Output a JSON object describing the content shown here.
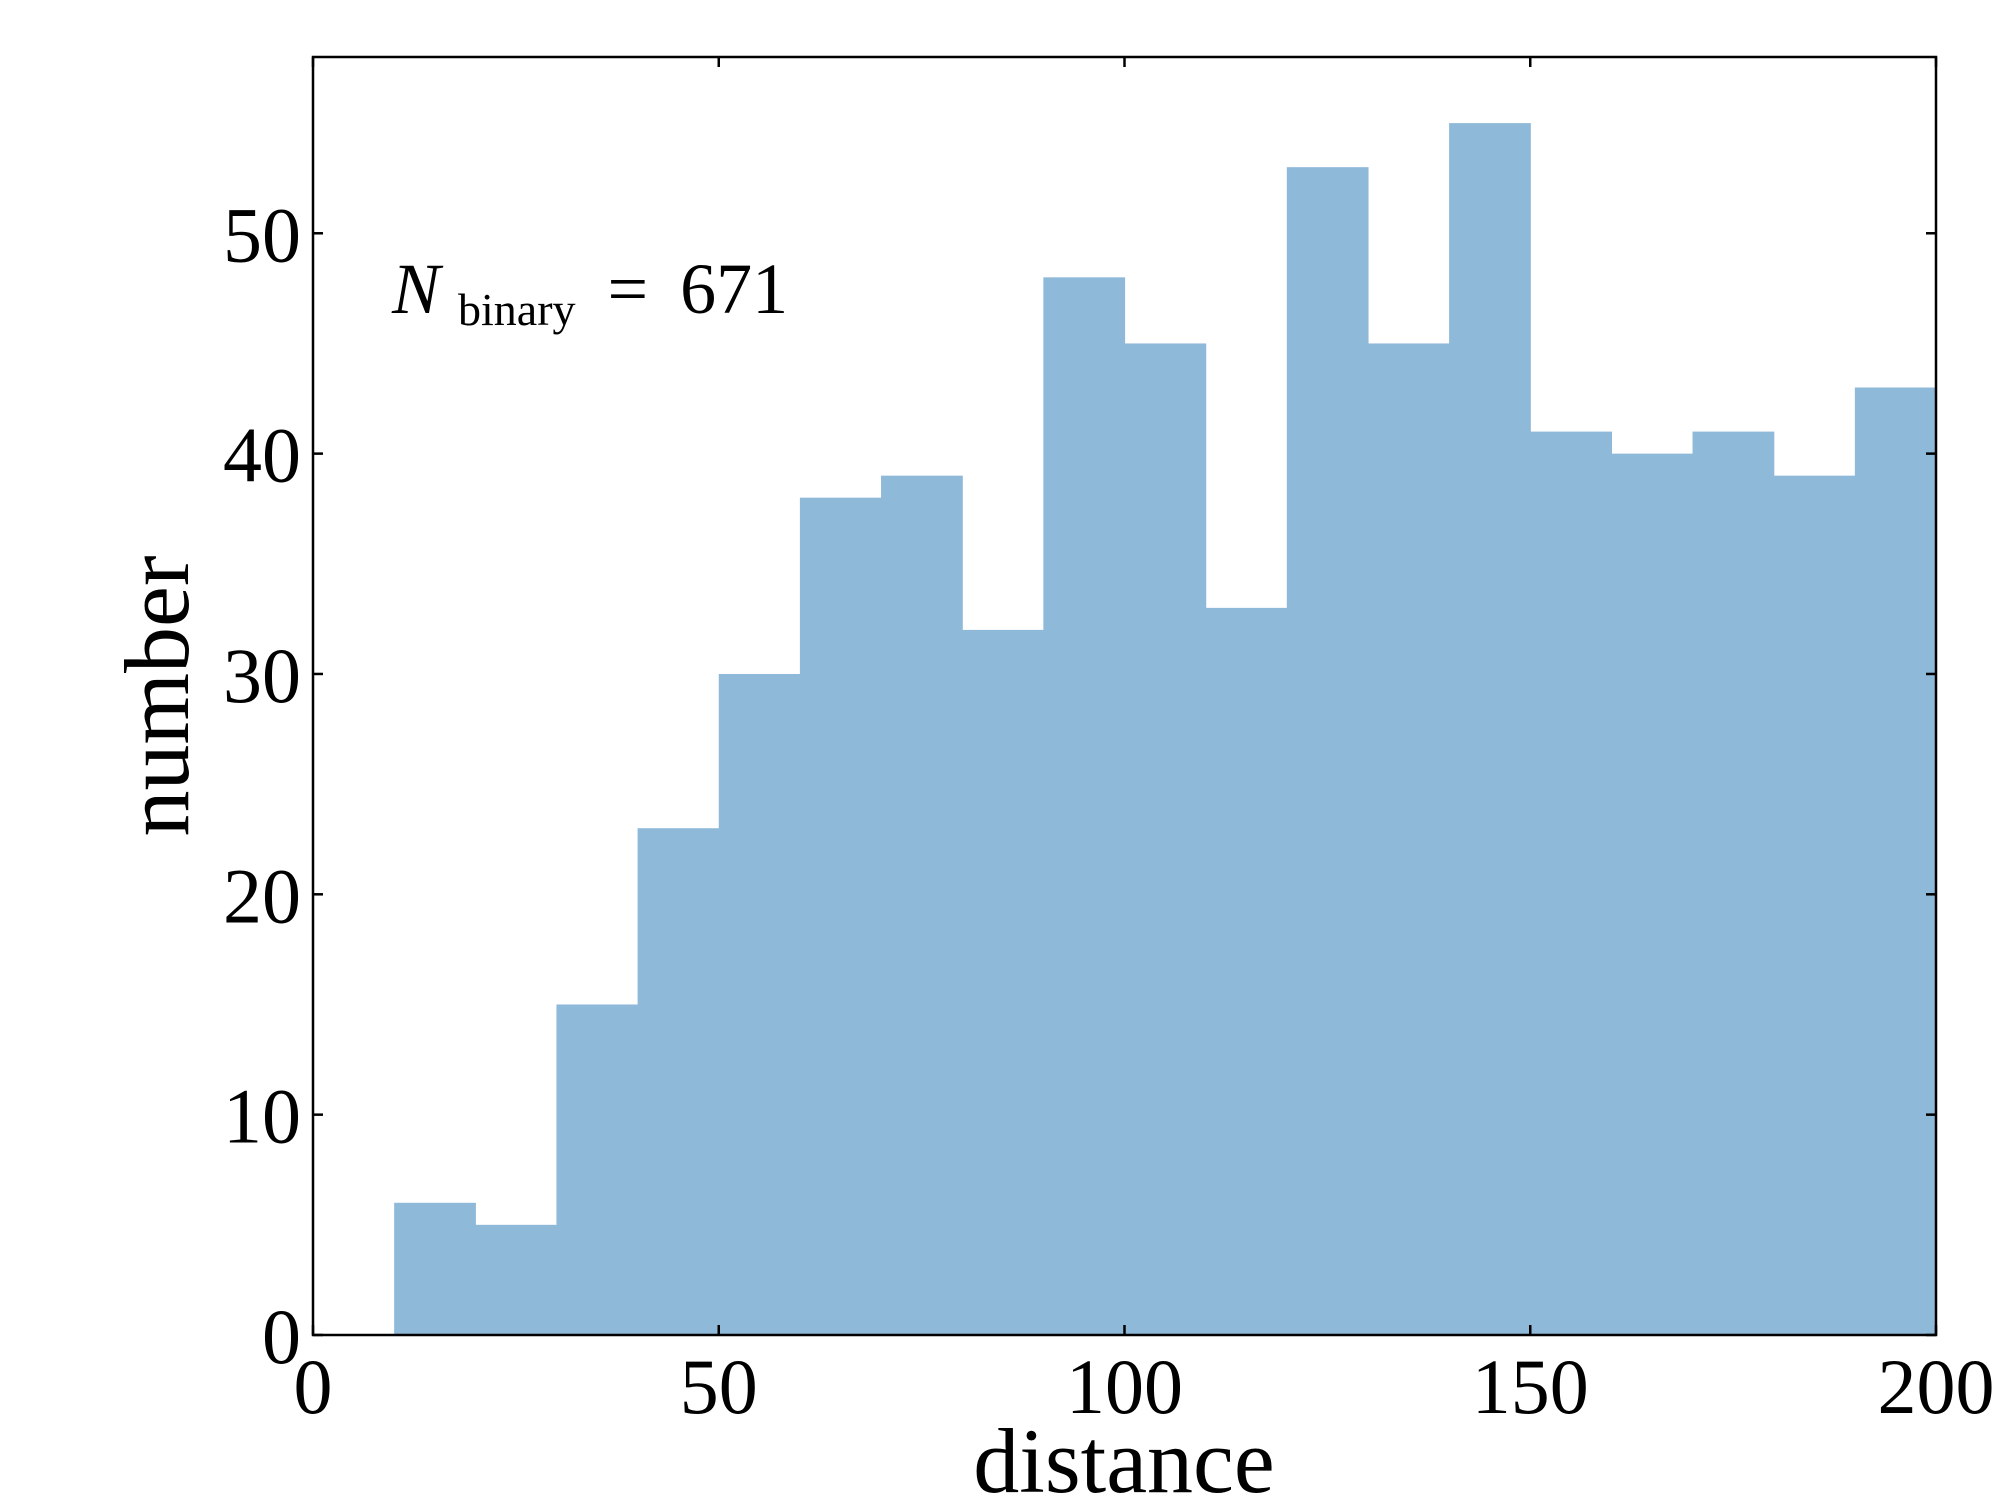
{
  "chart_data": {
    "type": "bar",
    "subtype": "histogram",
    "xlabel": "distance",
    "ylabel": "number",
    "xlim": [
      0,
      200
    ],
    "ylim": [
      0,
      58
    ],
    "bin_width": 10,
    "bin_edges": [
      10,
      20,
      30,
      40,
      50,
      60,
      70,
      80,
      90,
      100,
      110,
      120,
      130,
      140,
      150,
      160,
      170,
      180,
      190,
      200
    ],
    "values": [
      6,
      5,
      15,
      23,
      30,
      38,
      39,
      32,
      48,
      45,
      33,
      53,
      45,
      55,
      41,
      40,
      41,
      39,
      43
    ],
    "x_ticks": [
      0,
      50,
      100,
      150,
      200
    ],
    "x_tick_labels": [
      "0",
      "50",
      "100",
      "150",
      "200"
    ],
    "y_ticks": [
      0,
      10,
      20,
      30,
      40,
      50
    ],
    "y_tick_labels": [
      "0",
      "10",
      "20",
      "30",
      "40",
      "50"
    ],
    "annotation": {
      "symbol": "N",
      "subscript": "binary",
      "equals": "=",
      "value": "671"
    },
    "bar_color": "#8fb9d9",
    "axis_color": "#000000",
    "grid": false,
    "legend": false
  }
}
